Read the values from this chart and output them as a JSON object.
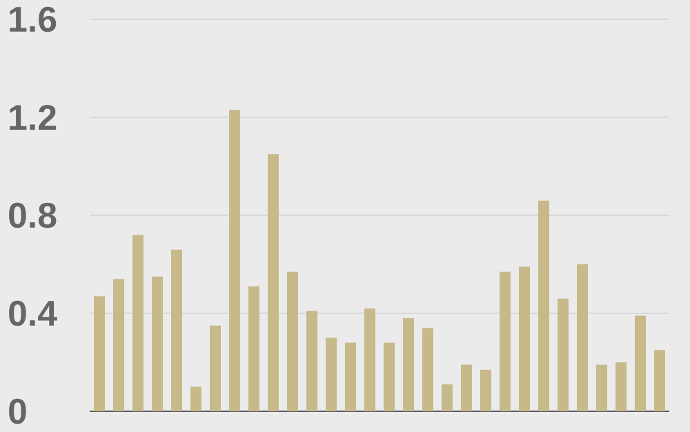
{
  "chart_data": {
    "type": "bar",
    "categories": [
      null,
      null,
      null,
      null,
      null,
      null,
      null,
      null,
      null,
      null,
      null,
      null,
      null,
      null,
      null,
      null,
      null,
      null,
      null,
      null,
      null,
      null,
      null,
      null,
      null,
      null,
      null,
      null,
      null,
      null
    ],
    "values": [
      0.47,
      0.54,
      0.72,
      0.55,
      0.66,
      0.1,
      0.35,
      1.23,
      0.51,
      1.05,
      0.57,
      0.41,
      0.3,
      0.28,
      0.42,
      0.28,
      0.38,
      0.34,
      0.11,
      0.19,
      0.17,
      0.57,
      0.59,
      0.86,
      0.46,
      0.6,
      0.19,
      0.2,
      0.39,
      0.25
    ],
    "color": "#c8b98a",
    "ylim": [
      0,
      1.6
    ],
    "yticks": [
      0,
      0.4,
      0.8,
      1.2,
      1.6
    ],
    "grid": "y",
    "tick_labels": "y"
  }
}
